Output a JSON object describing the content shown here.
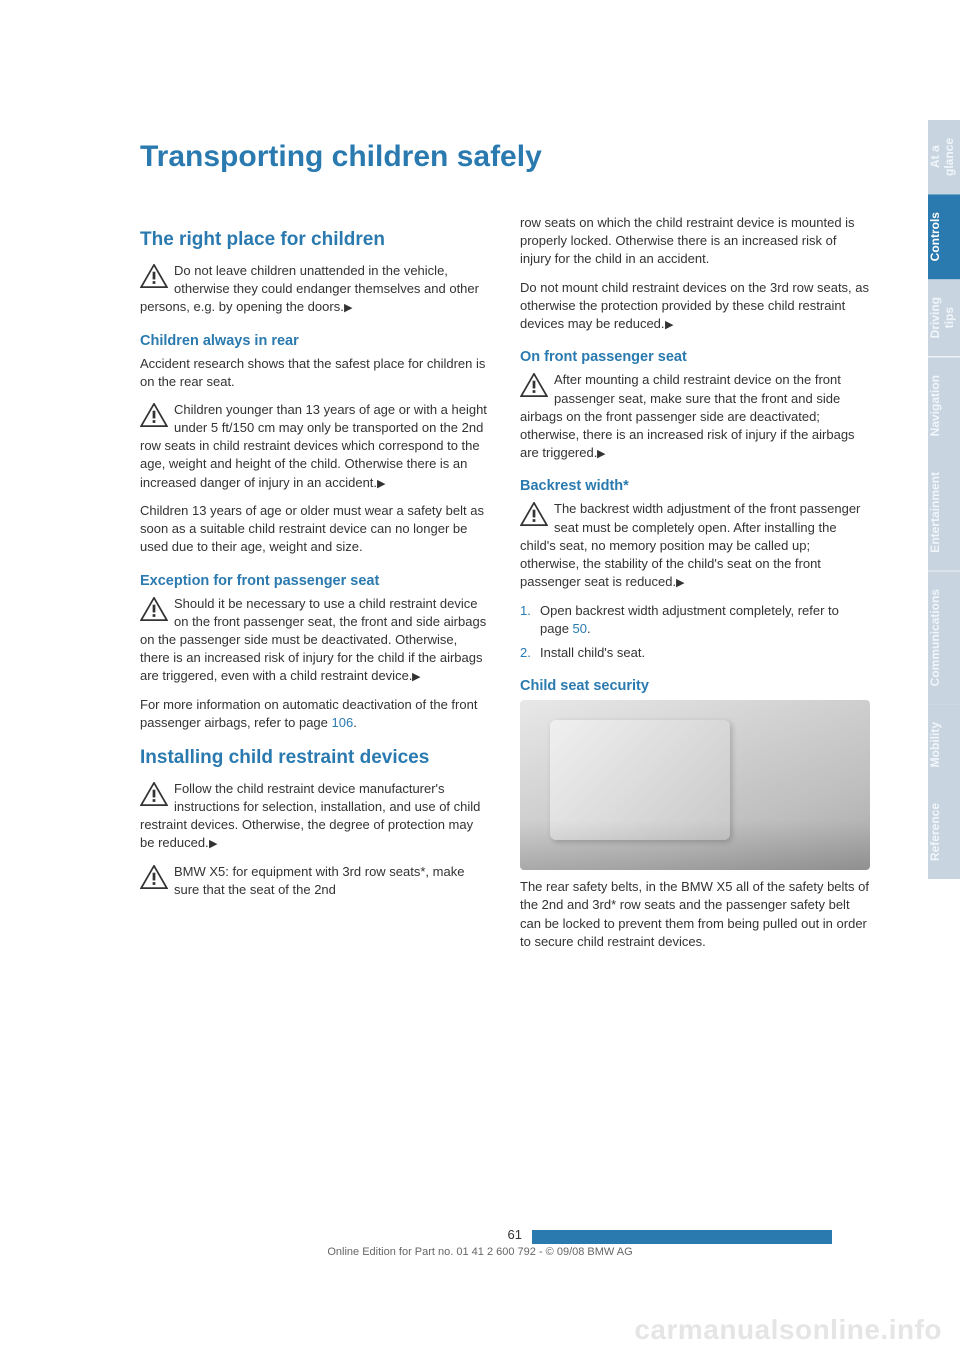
{
  "title": "Transporting children safely",
  "left": {
    "s1_heading": "The right place for children",
    "s1_p1": "Do not leave children unattended in the vehicle, otherwise they could endanger themselves and other persons, e.g. by opening the doors.",
    "s1_sub1": "Children always in rear",
    "s1_p2": "Accident research shows that the safest place for children is on the rear seat.",
    "s1_p3": "Children younger than 13 years of age or with a height under 5 ft/150 cm may only be transported on the 2nd row seats in child restraint devices which correspond to the age, weight and height of the child. Otherwise there is an increased danger of injury in an accident.",
    "s1_p4": "Children 13 years of age or older must wear a safety belt as soon as a suitable child restraint device can no longer be used due to their age, weight and size.",
    "s1_sub2": "Exception for front passenger seat",
    "s1_p5": "Should it be necessary to use a child restraint device on the front passenger seat, the front and side airbags on the passenger side must be deactivated. Otherwise, there is an increased risk of injury for the child if the airbags are triggered, even with a child restraint device.",
    "s1_p6a": "For more information on automatic deactivation of the front passenger airbags, refer to page ",
    "s1_p6_link": "106",
    "s2_heading": "Installing child restraint devices",
    "s2_p1": "Follow the child restraint device manufacturer's instructions for selection, installation, and use of child restraint devices. Otherwise, the degree of protection may be reduced.",
    "s2_p2": "BMW X5: for equipment with 3rd row seats*, make sure that the seat of the 2nd"
  },
  "right": {
    "p1": "row seats on which the child restraint device is mounted is properly locked. Otherwise there is an increased risk of injury for the child in an accident.",
    "p2": "Do not mount child restraint devices on the 3rd row seats, as otherwise the protection provided by these child restraint devices may be reduced.",
    "sub1": "On front passenger seat",
    "p3": "After mounting a child restraint device on the front passenger seat, make sure that the front and side airbags on the front passenger side are deactivated; otherwise, there is an increased risk of injury if the airbags are triggered.",
    "sub2": "Backrest width*",
    "p4": "The backrest width adjustment of the front passenger seat must be completely open. After installing the child's seat, no memory position may be called up; otherwise, the stability of the child's seat on the front passenger seat is reduced.",
    "step1a": "Open backrest width adjustment completely, refer to page ",
    "step1_link": "50",
    "step2": "Install child's seat.",
    "sub3": "Child seat security",
    "p5": "The rear safety belts, in the BMW X5 all of the safety belts of the 2nd and 3rd* row seats and the passenger safety belt can be locked to prevent them from being pulled out in order to secure child restraint devices."
  },
  "tabs": [
    "At a glance",
    "Controls",
    "Driving tips",
    "Navigation",
    "Entertainment",
    "Communications",
    "Mobility",
    "Reference"
  ],
  "active_tab_index": 1,
  "page_number": "61",
  "footer_line": "Online Edition for Part no. 01 41 2 600 792 - © 09/08 BMW AG",
  "watermark": "carmanualsonline.info",
  "colors": {
    "accent": "#2a7ab0",
    "tab_inactive": "#c8d5e0",
    "text": "#333333"
  }
}
